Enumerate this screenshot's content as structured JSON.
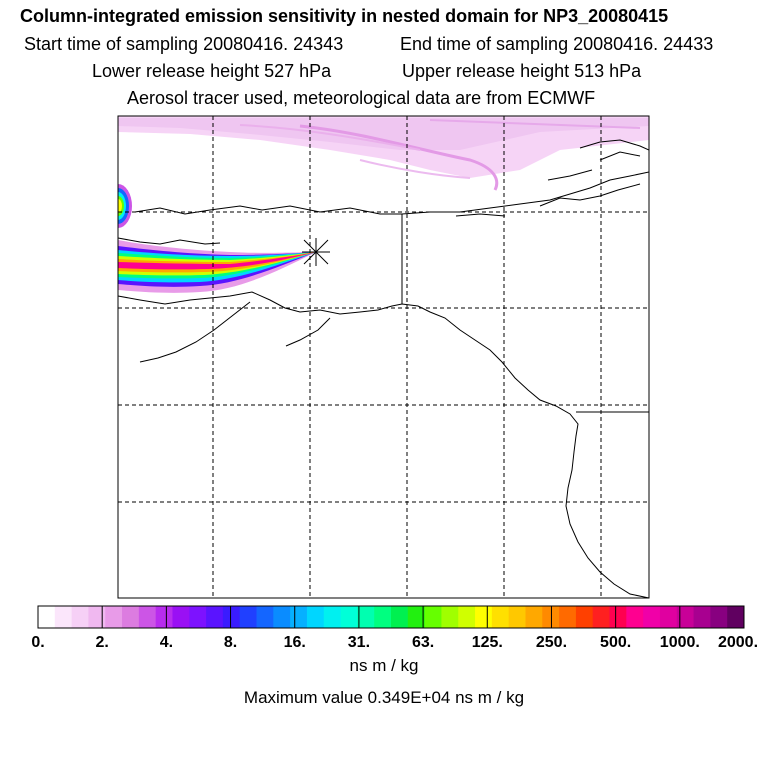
{
  "header": {
    "title": "Column-integrated emission sensitivity in nested domain for NP3_20080415",
    "start_label": "Start time of sampling 20080416. 24343",
    "end_label": "End time of sampling 20080416. 24433",
    "lower_label": "Lower release height  527 hPa",
    "upper_label": "Upper release height  513 hPa",
    "tracer_line": "Aerosol tracer used, meteorological data are from ECMWF"
  },
  "map": {
    "gridlines": "dashed",
    "release_marker": "x-star-icon"
  },
  "colorbar": {
    "tick_labels": [
      "0.",
      "2.",
      "4.",
      "8.",
      "16.",
      "31.",
      "63.",
      "125.",
      "250.",
      "500.",
      "1000.",
      "2000."
    ],
    "colors": [
      "#ffffff",
      "#fbe6fb",
      "#f6d0f6",
      "#f0b8f0",
      "#e89be8",
      "#dc7ce0",
      "#cc55e6",
      "#b82cee",
      "#9a10f4",
      "#7d12ff",
      "#5a14ff",
      "#3a1cff",
      "#2040ff",
      "#1466ff",
      "#0a8cff",
      "#06b0ff",
      "#00d6ff",
      "#00f0f0",
      "#00ffd8",
      "#00ffb0",
      "#00ff80",
      "#00f050",
      "#22f010",
      "#66ff00",
      "#a0ff00",
      "#d0ff00",
      "#ffff00",
      "#ffe000",
      "#ffc800",
      "#ffa800",
      "#ff8a00",
      "#ff6a00",
      "#ff4000",
      "#ff2020",
      "#ff0050",
      "#ff0090",
      "#f000a8",
      "#e000a0",
      "#c80098",
      "#a80090",
      "#880080",
      "#600060"
    ],
    "units": "ns m / kg",
    "max_line": "Maximum value  0.349E+04 ns m / kg"
  }
}
